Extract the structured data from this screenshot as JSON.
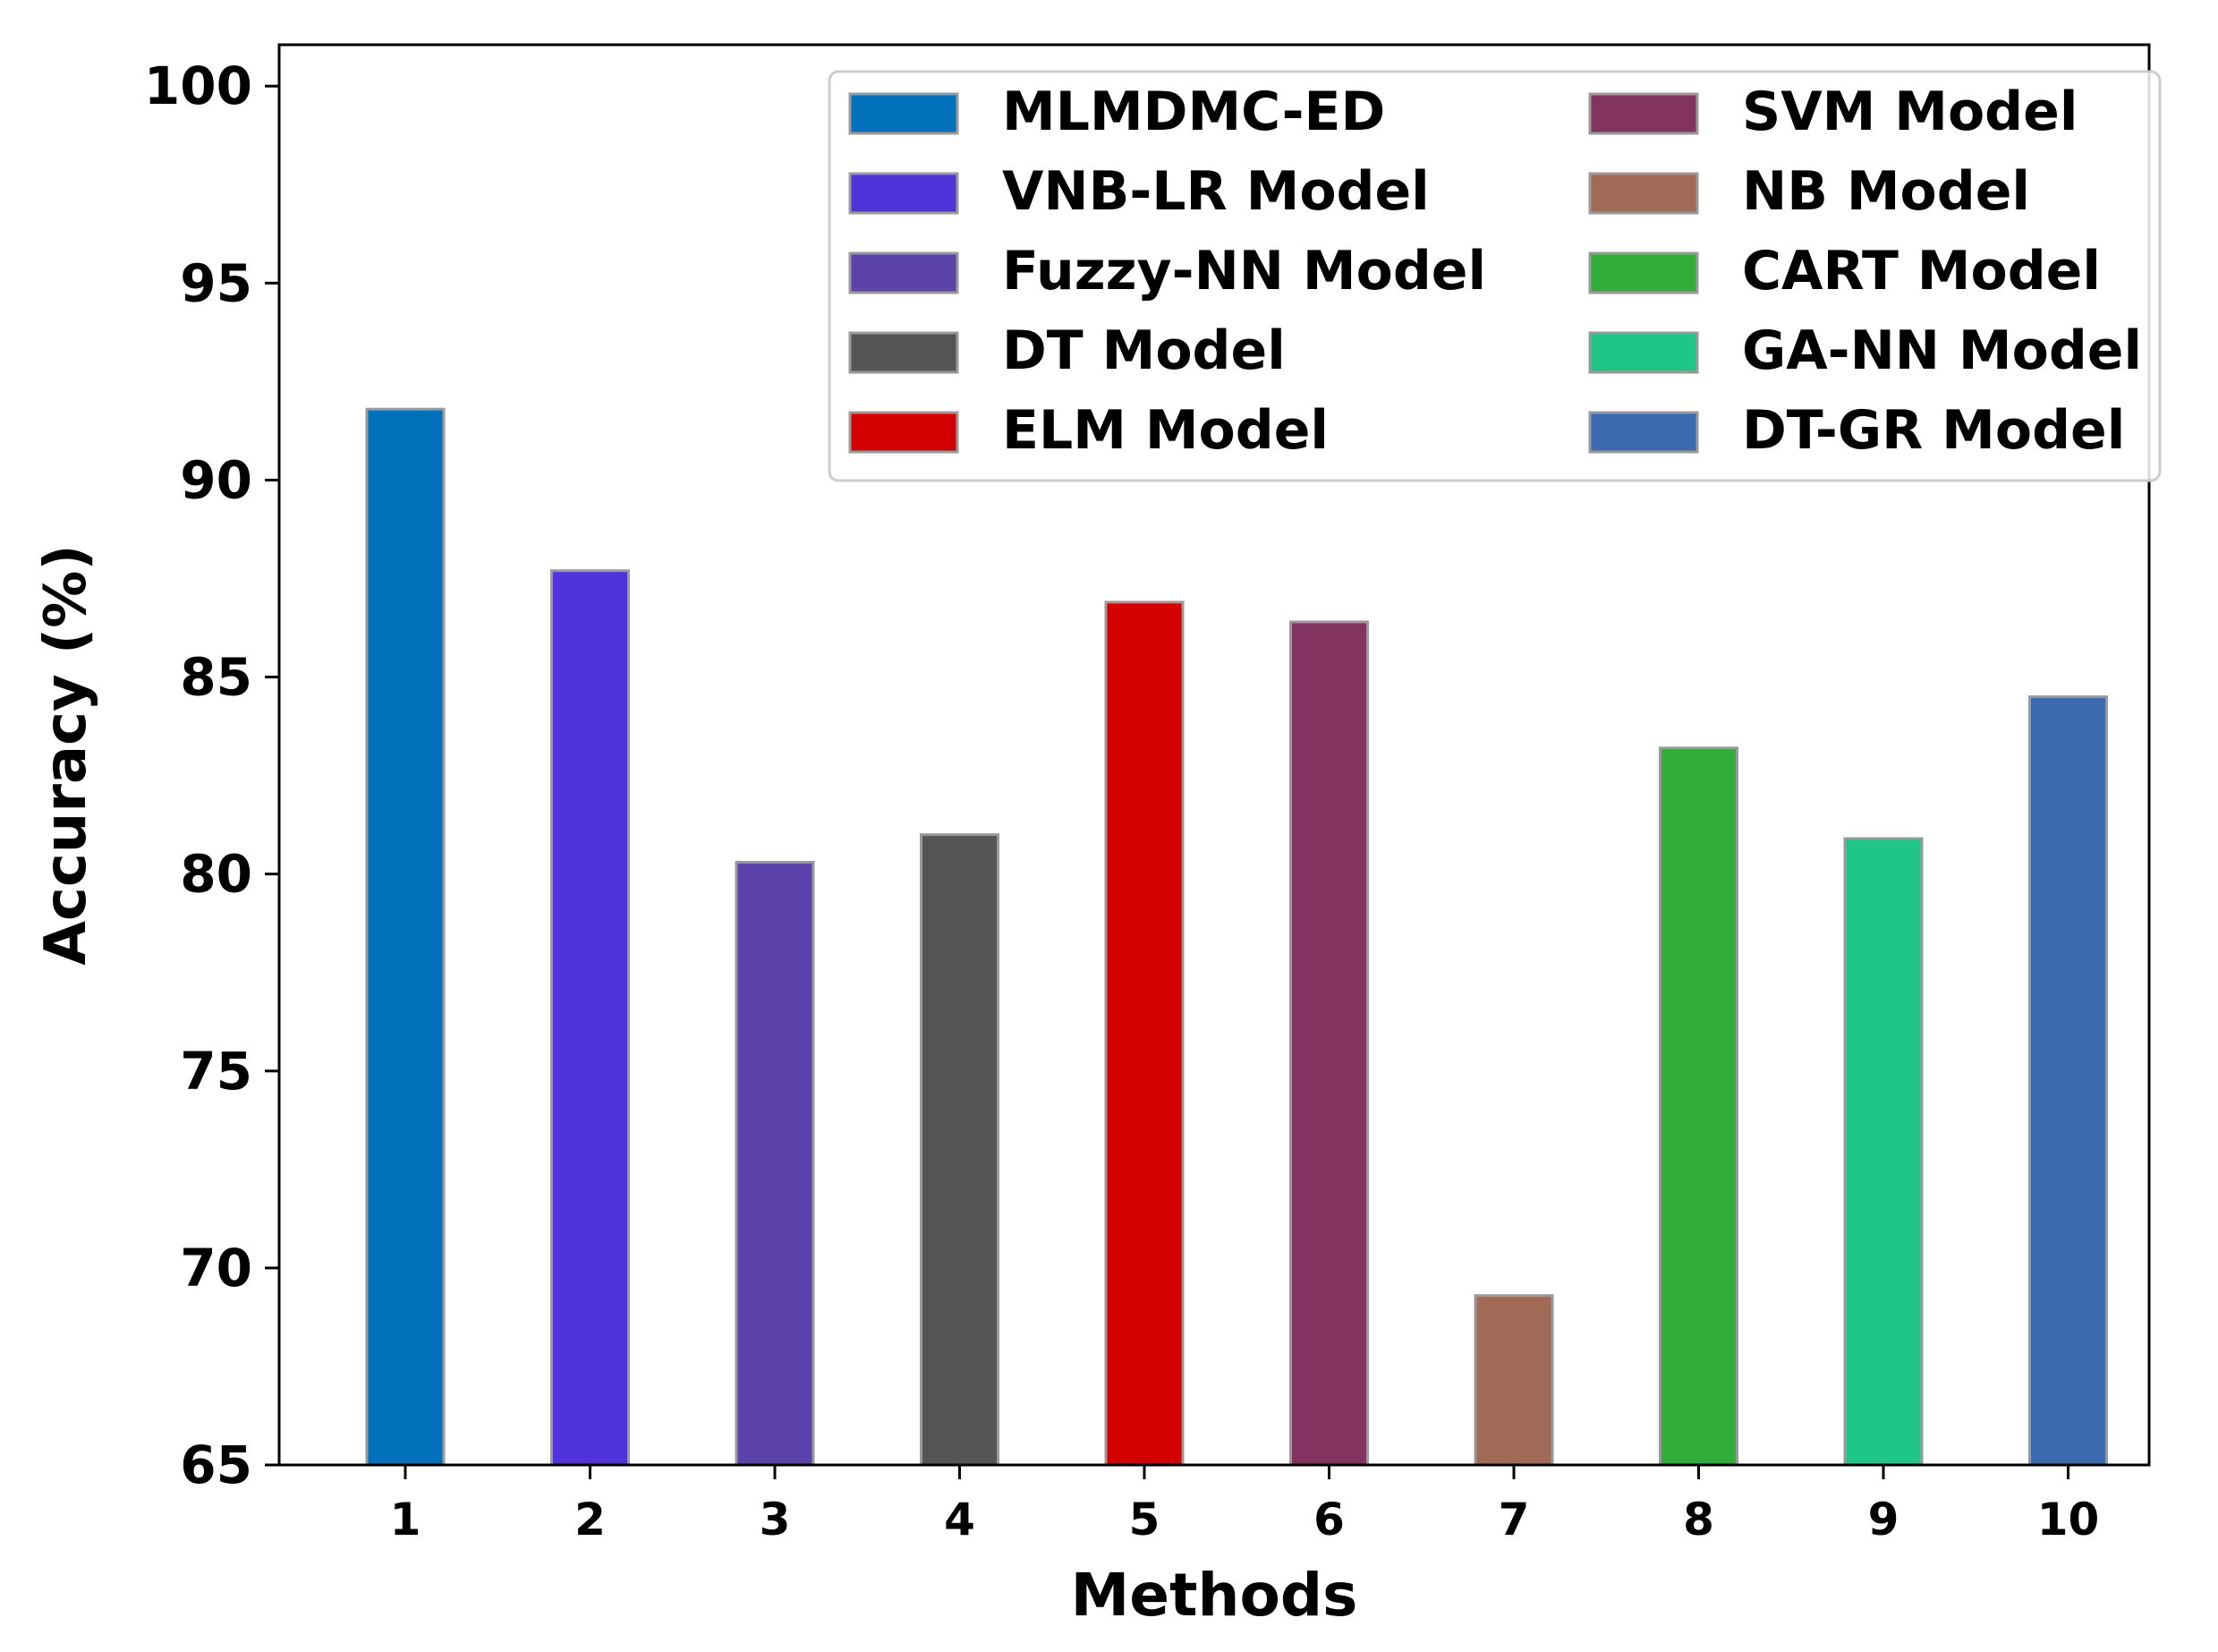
{
  "chart_data": {
    "type": "bar",
    "title": "",
    "xlabel": "Methods",
    "ylabel": "Accuracy (%)",
    "ylim": [
      65,
      100
    ],
    "yticks": [
      "65",
      "70",
      "75",
      "80",
      "85",
      "90",
      "95",
      "100"
    ],
    "categories": [
      "1",
      "2",
      "3",
      "4",
      "5",
      "6",
      "7",
      "8",
      "9",
      "10"
    ],
    "values": [
      91.8,
      87.7,
      80.3,
      81.0,
      86.9,
      86.4,
      69.3,
      83.2,
      80.9,
      84.5
    ],
    "series_names": [
      "MLMDMC-ED",
      "VNB-LR Model",
      "Fuzzy-NN Model",
      "DT Model",
      "ELM Model",
      "SVM Model",
      "NB Model",
      "CART Model",
      "GA-NN Model",
      "DT-GR Model"
    ],
    "colors": [
      "#0271BC",
      "#5133DA",
      "#5C42AB",
      "#555555",
      "#D40000",
      "#823360",
      "#A06A57",
      "#31AD3A",
      "#20C688",
      "#3B6AB0"
    ],
    "grid": false,
    "legend_position": "top-right",
    "legend_columns": 2
  }
}
